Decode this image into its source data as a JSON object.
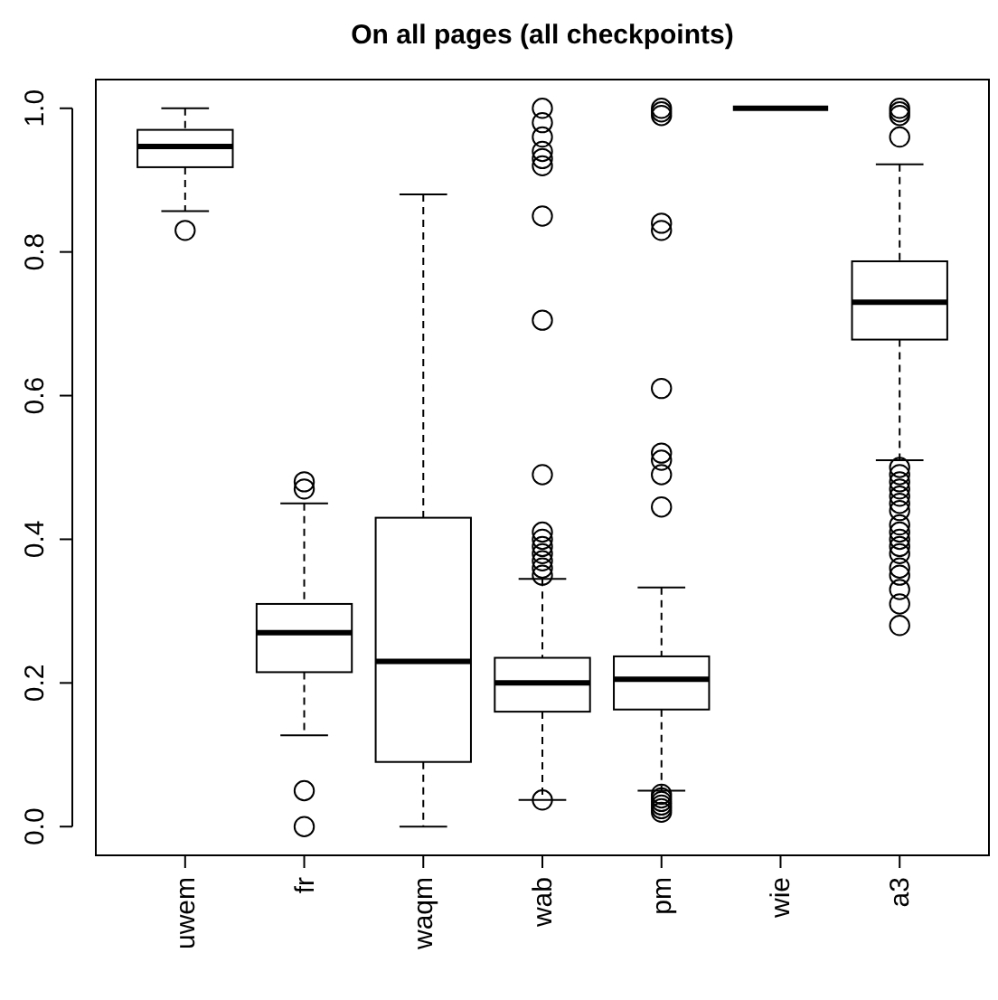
{
  "chart_data": {
    "type": "box",
    "title": "On all pages (all checkpoints)",
    "categories": [
      "uwem",
      "fr",
      "waqm",
      "wab",
      "pm",
      "wie",
      "a3"
    ],
    "boxes": [
      {
        "low": 0.857,
        "q1": 0.918,
        "median": 0.947,
        "q3": 0.97,
        "high": 1.0,
        "outliers": [
          0.83
        ]
      },
      {
        "low": 0.127,
        "q1": 0.215,
        "median": 0.27,
        "q3": 0.31,
        "high": 0.45,
        "outliers": [
          0.48,
          0.47,
          0.05,
          0.0
        ]
      },
      {
        "low": 0.0,
        "q1": 0.09,
        "median": 0.23,
        "q3": 0.43,
        "high": 0.88
      },
      {
        "low": 0.037,
        "q1": 0.16,
        "median": 0.2,
        "q3": 0.235,
        "high": 0.345,
        "outliers": [
          1.0,
          0.98,
          0.96,
          0.94,
          0.93,
          0.92,
          0.85,
          0.705,
          0.49,
          0.41,
          0.4,
          0.39,
          0.38,
          0.37,
          0.36,
          0.35,
          0.037
        ]
      },
      {
        "low": 0.05,
        "q1": 0.163,
        "median": 0.205,
        "q3": 0.237,
        "high": 0.333,
        "outliers": [
          1.0,
          0.995,
          0.99,
          0.84,
          0.83,
          0.61,
          0.52,
          0.51,
          0.49,
          0.445,
          0.045,
          0.04,
          0.035,
          0.03,
          0.025,
          0.02
        ]
      },
      {
        "low": 1.0,
        "q1": 1.0,
        "median": 1.0,
        "q3": 1.0,
        "high": 1.0
      },
      {
        "low": 0.51,
        "q1": 0.678,
        "median": 0.73,
        "q3": 0.787,
        "high": 0.922,
        "outliers": [
          1.0,
          0.995,
          0.99,
          0.96,
          0.5,
          0.49,
          0.48,
          0.47,
          0.46,
          0.45,
          0.44,
          0.42,
          0.41,
          0.4,
          0.39,
          0.38,
          0.36,
          0.35,
          0.33,
          0.31,
          0.28
        ]
      }
    ],
    "ylim": [
      -0.04,
      1.04
    ],
    "yticks": [
      {
        "value": 0,
        "label": "0.0"
      },
      {
        "value": 0.2,
        "label": "0.2"
      },
      {
        "value": 0.4,
        "label": "0.4"
      },
      {
        "value": 0.6,
        "label": "0.6"
      },
      {
        "value": 0.8,
        "label": "0.8"
      },
      {
        "value": 1,
        "label": "1.0"
      }
    ],
    "marker": "circle"
  }
}
